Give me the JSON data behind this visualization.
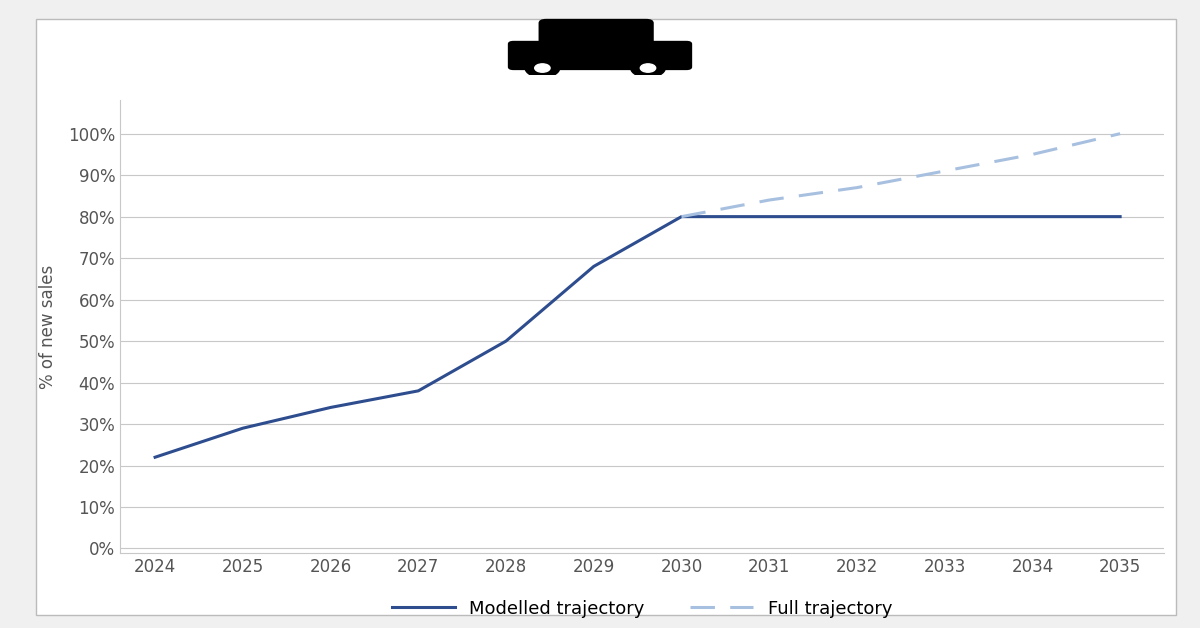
{
  "modelled_x": [
    2024,
    2025,
    2026,
    2027,
    2028,
    2029,
    2030,
    2031,
    2032,
    2033,
    2034,
    2035
  ],
  "modelled_y": [
    0.22,
    0.29,
    0.34,
    0.38,
    0.5,
    0.68,
    0.8,
    0.8,
    0.8,
    0.8,
    0.8,
    0.8
  ],
  "full_x": [
    2030,
    2031,
    2032,
    2033,
    2034,
    2035
  ],
  "full_y": [
    0.8,
    0.84,
    0.87,
    0.91,
    0.95,
    1.0
  ],
  "modelled_color": "#2e4d8e",
  "full_color": "#a8c0e0",
  "ylabel": "% of new sales",
  "yticks": [
    0.0,
    0.1,
    0.2,
    0.3,
    0.4,
    0.5,
    0.6,
    0.7,
    0.8,
    0.9,
    1.0
  ],
  "ytick_labels": [
    "0%",
    "10%",
    "20%",
    "30%",
    "40%",
    "50%",
    "60%",
    "70%",
    "80%",
    "90%",
    "100%"
  ],
  "xticks": [
    2024,
    2025,
    2026,
    2027,
    2028,
    2029,
    2030,
    2031,
    2032,
    2033,
    2034,
    2035
  ],
  "legend_modelled": "Modelled trajectory",
  "legend_full": "Full trajectory",
  "bg_color": "#ffffff",
  "outer_bg": "#f0f0f0",
  "grid_color": "#c8c8c8",
  "line_width": 2.2,
  "font_size": 12,
  "tick_color": "#555555"
}
